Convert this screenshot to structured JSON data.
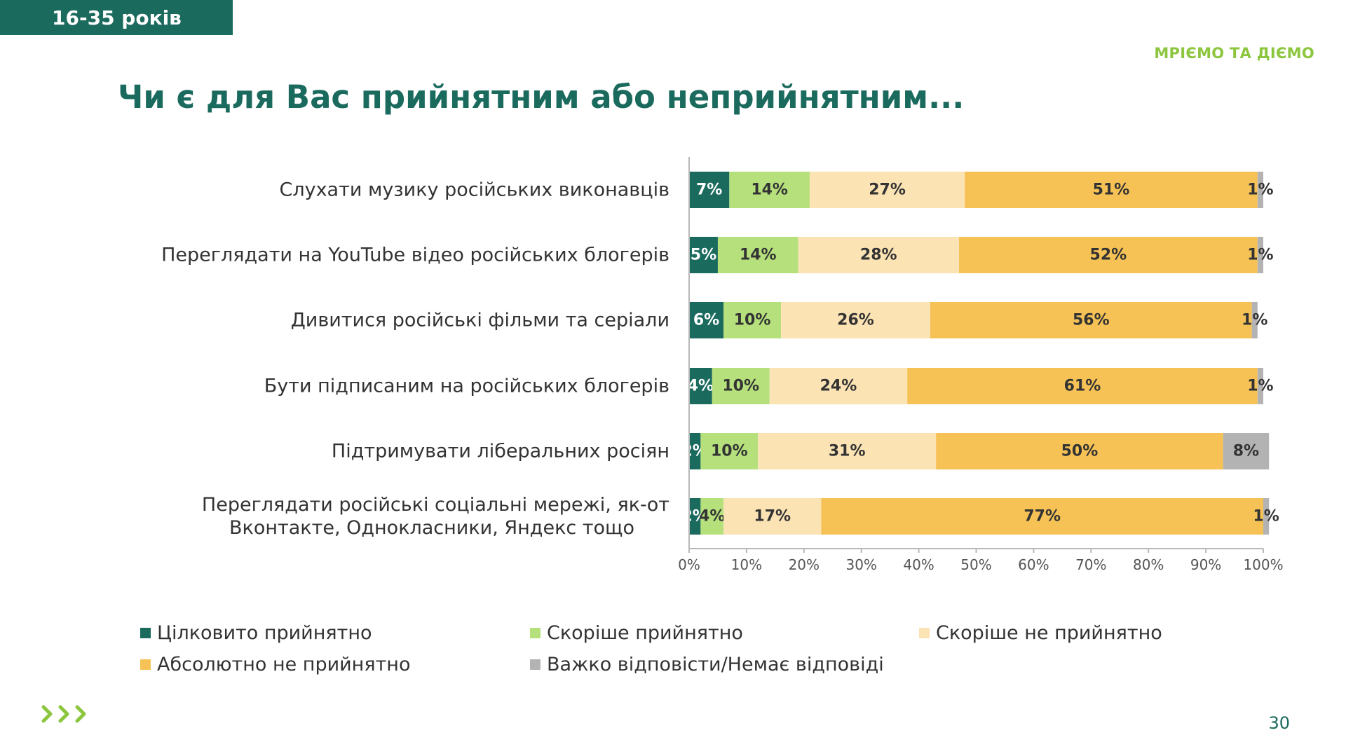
{
  "header": {
    "age_group": "16-35 років",
    "brand": "МРІЄМО ТА ДІЄМО",
    "title": "Чи є для Вас прийнятним або неприйнятним..."
  },
  "footer": {
    "page_number": "30"
  },
  "colors": {
    "brand_dark": "#1b6a5e",
    "brand_light": "#8cc63f"
  },
  "chart_data": {
    "type": "bar",
    "orientation": "horizontal",
    "stacked": true,
    "categories": [
      [
        "Слухати музику російських виконавців"
      ],
      [
        "Переглядати на YouTube відео російських блогерів"
      ],
      [
        "Дивитися російські фільми та серіали"
      ],
      [
        "Бути підписаним на російських блогерів"
      ],
      [
        "Підтримувати ліберальних росіян"
      ],
      [
        "Переглядати російські соціальні мережі,  як-от",
        "Вконтакте, Однокласники, Яндекс тощо"
      ]
    ],
    "series": [
      {
        "name": "Цілковито прийнятно",
        "color": "#1b6a5e",
        "label_color": "#ffffff",
        "values": [
          7,
          5,
          6,
          4,
          2,
          2
        ]
      },
      {
        "name": "Скоріше прийнятно",
        "color": "#b5e07c",
        "label_color": "#333333",
        "values": [
          14,
          14,
          10,
          10,
          10,
          4
        ]
      },
      {
        "name": "Скоріше не прийнятно",
        "color": "#fbe3b4",
        "label_color": "#333333",
        "values": [
          27,
          28,
          26,
          24,
          31,
          17
        ]
      },
      {
        "name": "Абсолютно не прийнятно",
        "color": "#f6c255",
        "label_color": "#333333",
        "values": [
          51,
          52,
          56,
          61,
          50,
          77
        ]
      },
      {
        "name": "Важко відповісти/Немає відповіді",
        "color": "#b3b3b3",
        "label_color": "#333333",
        "values": [
          1,
          1,
          1,
          1,
          8,
          1
        ]
      }
    ],
    "xlim": [
      0,
      100
    ],
    "xticks": [
      "0%",
      "10%",
      "20%",
      "30%",
      "40%",
      "50%",
      "60%",
      "70%",
      "80%",
      "90%",
      "100%"
    ],
    "value_suffix": "%",
    "legend_position": "bottom"
  }
}
